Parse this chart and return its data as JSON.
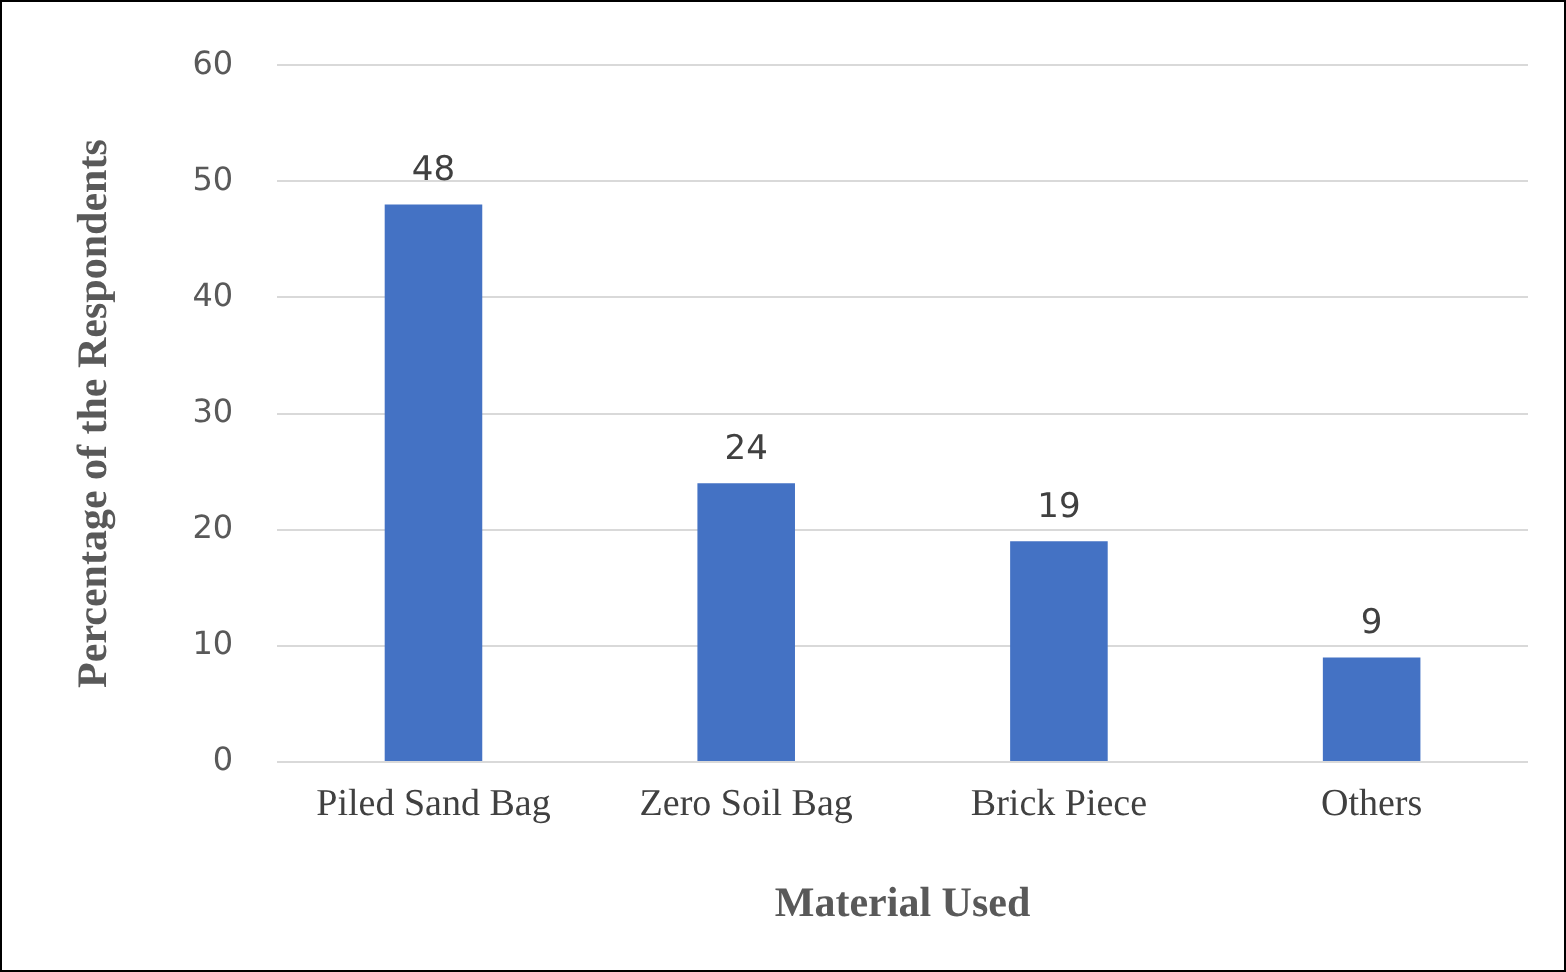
{
  "chart_data": {
    "type": "bar",
    "xlabel": "Material Used",
    "ylabel": "Percentage of the Respondents",
    "categories": [
      "Piled Sand Bag",
      "Zero Soil Bag",
      "Brick Piece",
      "Others"
    ],
    "values": [
      48,
      24,
      19,
      9
    ],
    "color": "#4472c4",
    "ylim": [
      0,
      60
    ],
    "yticks": [
      0,
      10,
      20,
      30,
      40,
      50,
      60
    ],
    "grid": "y",
    "legend": false,
    "data_labels": true
  }
}
